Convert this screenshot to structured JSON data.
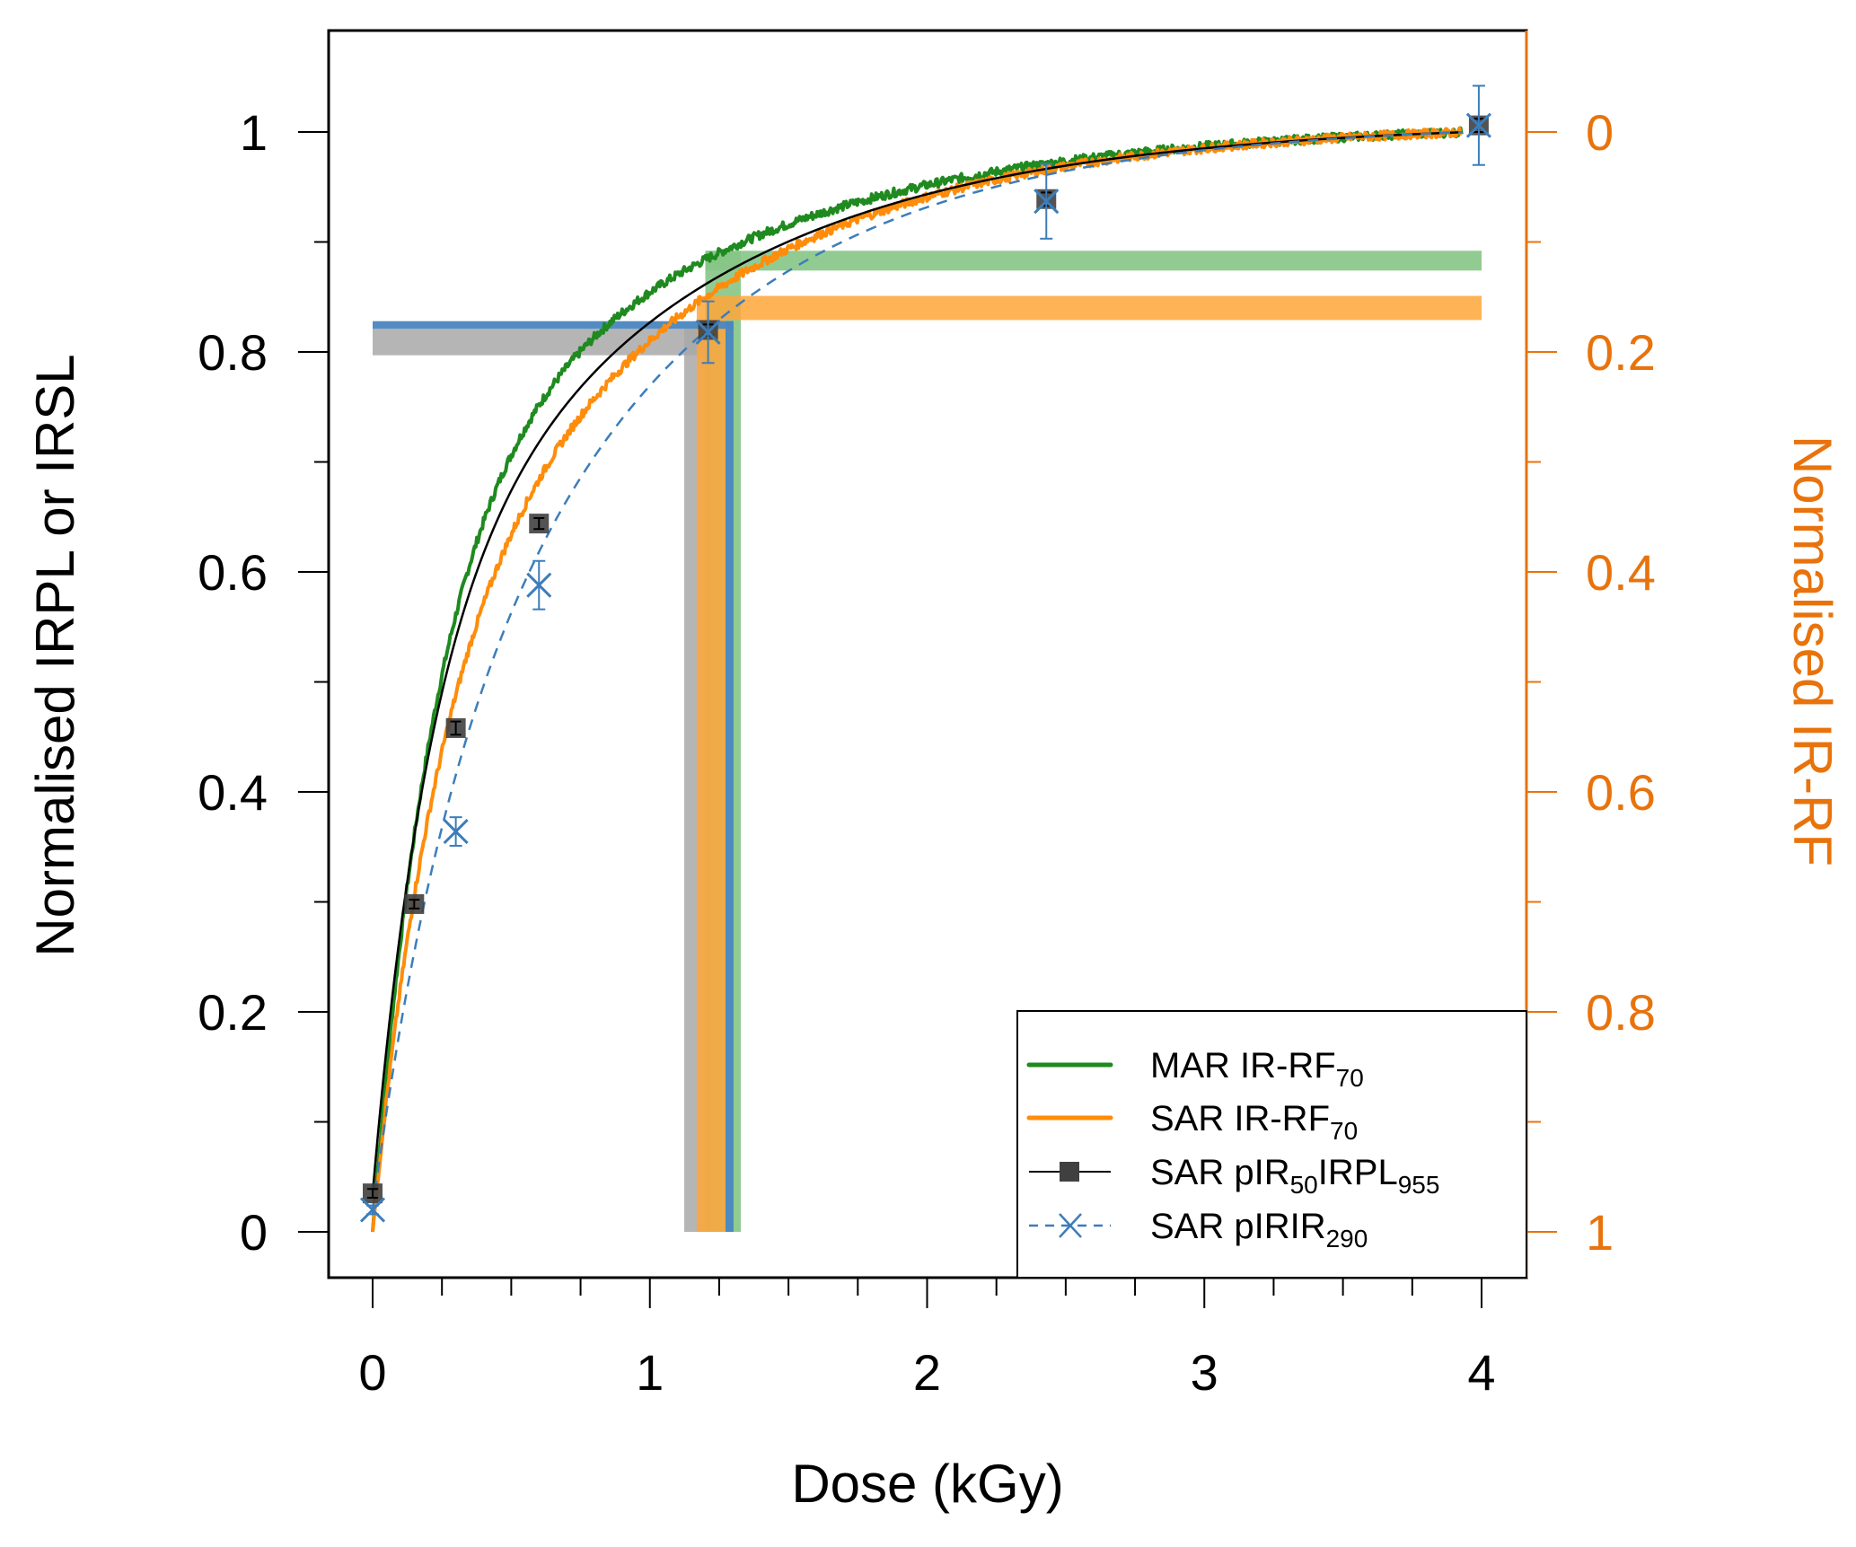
{
  "chart_data": {
    "type": "line",
    "title": "",
    "xlabel": "Dose (kGy)",
    "ylabel": "Normalised IRPL or IRSL",
    "ylabel_right": "Normalised IR-RF",
    "xlim": [
      -0.16,
      4.16
    ],
    "ylim": [
      -0.042,
      1.092
    ],
    "ylim_right_inverted": true,
    "x_ticks": [
      0,
      1,
      2,
      3,
      4
    ],
    "x_tick_labels": [
      "0",
      "1",
      "2",
      "3",
      "4"
    ],
    "x_minor_step": 0.25,
    "y_ticks": [
      0,
      0.2,
      0.4,
      0.6,
      0.8,
      1
    ],
    "y_tick_labels": [
      "0",
      "0.2",
      "0.4",
      "0.6",
      "0.8",
      "1"
    ],
    "y_minor_step": 0.1,
    "y_right_ticks": [
      0,
      0.2,
      0.4,
      0.6,
      0.8,
      1
    ],
    "y_right_tick_labels": [
      "0",
      "0.2",
      "0.4",
      "0.6",
      "0.8",
      "1"
    ],
    "grid": false,
    "legend_position": "bottom-right",
    "colors": {
      "mar_irrf": "#1F8A1F",
      "sar_irrf": "#FF8C0A",
      "pir50irpl": "#000000",
      "pir50irpl_marker": "#404040",
      "pirir290": "#3C7DBA",
      "right_axis": "#E8730C",
      "band_green": "#86C586",
      "band_orange": "#FFA63A",
      "band_blue": "#4A86C0",
      "band_gray": "#A8A8A8"
    },
    "series": [
      {
        "name": "MAR IR-RF70",
        "legend_main": "MAR IR-RF",
        "legend_sub": "70",
        "legend_tail": "",
        "legend_tail_sub": "",
        "style": "noisy-line",
        "axis": "right-inverted",
        "model": {
          "a": 0.62,
          "t1": 0.22,
          "t2": 1.05
        },
        "x": [
          0,
          0.1,
          0.2,
          0.3,
          0.5,
          0.75,
          0.93,
          1.25,
          1.5,
          2.0,
          2.5,
          3.0,
          3.5,
          3.93
        ],
        "y": [
          0.0,
          0.33,
          0.5,
          0.6,
          0.72,
          0.8,
          0.83,
          0.89,
          0.915,
          0.95,
          0.97,
          0.985,
          0.995,
          1.0
        ]
      },
      {
        "name": "SAR IR-RF70",
        "legend_main": "SAR IR-RF",
        "legend_sub": "70",
        "legend_tail": "",
        "legend_tail_sub": "",
        "style": "noisy-line",
        "axis": "right-inverted",
        "model": {
          "a": 0.45,
          "t1": 0.22,
          "t2": 0.95
        },
        "x": [
          0,
          0.15,
          0.3,
          0.6,
          1.0,
          1.25,
          1.5,
          2.0,
          2.5,
          3.0,
          3.5,
          3.93
        ],
        "y": [
          0.0,
          0.3,
          0.47,
          0.66,
          0.79,
          0.84,
          0.875,
          0.92,
          0.955,
          0.975,
          0.99,
          1.0
        ]
      },
      {
        "name": "SAR pIR50IRPL955",
        "legend_main": "SAR pIR",
        "legend_sub": "50",
        "legend_tail": "IRPL",
        "legend_tail_sub": "955",
        "style": "line-square",
        "axis": "left",
        "fit": {
          "a": 0.5,
          "t1": 0.2,
          "t2": 1.0
        },
        "points": [
          {
            "x": 0.0,
            "y": 0.035,
            "err": 0.004
          },
          {
            "x": 0.15,
            "y": 0.298,
            "err": 0.004
          },
          {
            "x": 0.3,
            "y": 0.458,
            "err": 0.006
          },
          {
            "x": 0.6,
            "y": 0.644,
            "err": 0.005
          },
          {
            "x": 1.21,
            "y": 0.82,
            "err": 0.005
          },
          {
            "x": 2.43,
            "y": 0.939,
            "err": 0.006
          },
          {
            "x": 3.99,
            "y": 1.006,
            "err": 0.006
          }
        ]
      },
      {
        "name": "SAR pIRIR290",
        "legend_main": "SAR pIRIR",
        "legend_sub": "290",
        "legend_tail": "",
        "legend_tail_sub": "",
        "style": "dashed-cross",
        "axis": "left",
        "fit": {
          "a": 0.28,
          "t1": 0.25,
          "t2": 0.9
        },
        "points": [
          {
            "x": 0.0,
            "y": 0.02,
            "err": 0.004
          },
          {
            "x": 0.3,
            "y": 0.364,
            "err": 0.013
          },
          {
            "x": 0.6,
            "y": 0.588,
            "err": 0.022
          },
          {
            "x": 1.21,
            "y": 0.818,
            "err": 0.028
          },
          {
            "x": 2.43,
            "y": 0.937,
            "err": 0.034
          },
          {
            "x": 3.99,
            "y": 1.006,
            "err": 0.036
          }
        ]
      }
    ],
    "bands": [
      {
        "name": "gray-dose-estimate",
        "color_key": "band_gray",
        "opacity": 0.85,
        "h_y": [
          0.797,
          0.821
        ],
        "h_x": [
          0,
          1.22
        ],
        "v_x": [
          1.124,
          1.22
        ],
        "v_y": [
          0,
          0.821
        ]
      },
      {
        "name": "green-dose-estimate",
        "color_key": "band_green",
        "opacity": 0.9,
        "h_y": [
          0.874,
          0.892
        ],
        "h_x": [
          1.2,
          4.0
        ],
        "v_x": [
          1.2,
          1.328
        ],
        "v_y": [
          0,
          0.892
        ]
      },
      {
        "name": "orange-dose-estimate",
        "color_key": "band_orange",
        "opacity": 0.85,
        "h_y": [
          0.829,
          0.851
        ],
        "h_x": [
          1.27,
          4.0
        ],
        "v_x": [
          1.169,
          1.273
        ],
        "v_y": [
          0,
          0.851
        ]
      },
      {
        "name": "blue-dose-estimate",
        "color_key": "band_blue",
        "opacity": 0.95,
        "h_y": [
          0.821,
          0.828
        ],
        "h_x": [
          0,
          1.3
        ],
        "v_x": [
          1.273,
          1.302
        ],
        "v_y": [
          0,
          0.828
        ]
      }
    ]
  }
}
